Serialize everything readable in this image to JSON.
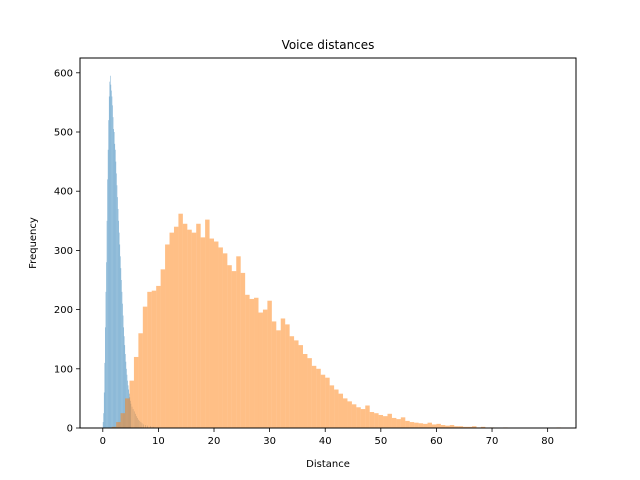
{
  "chart_data": {
    "type": "bar",
    "subtype": "overlapping-histogram",
    "title": "Voice distances",
    "xlabel": "Distance",
    "ylabel": "Frequency",
    "xlim": [
      -4.1,
      85.1
    ],
    "ylim": [
      0,
      625
    ],
    "xticks": [
      0,
      10,
      20,
      30,
      40,
      50,
      60,
      70,
      80
    ],
    "yticks": [
      0,
      100,
      200,
      300,
      400,
      500,
      600
    ],
    "grid": false,
    "legend": "none",
    "series": [
      {
        "color": "#1f77b4",
        "opacity": 0.5,
        "bin_width": 0.1,
        "bins": [
          [
            0.0,
            10
          ],
          [
            0.1,
            25
          ],
          [
            0.2,
            60
          ],
          [
            0.3,
            110
          ],
          [
            0.4,
            170
          ],
          [
            0.5,
            230
          ],
          [
            0.6,
            280
          ],
          [
            0.7,
            350
          ],
          [
            0.8,
            420
          ],
          [
            0.9,
            470
          ],
          [
            1.0,
            520
          ],
          [
            1.1,
            560
          ],
          [
            1.2,
            585
          ],
          [
            1.3,
            595
          ],
          [
            1.4,
            580
          ],
          [
            1.5,
            570
          ],
          [
            1.6,
            560
          ],
          [
            1.7,
            545
          ],
          [
            1.8,
            525
          ],
          [
            1.9,
            505
          ],
          [
            2.0,
            500
          ],
          [
            2.1,
            480
          ],
          [
            2.2,
            470
          ],
          [
            2.3,
            450
          ],
          [
            2.4,
            430
          ],
          [
            2.5,
            410
          ],
          [
            2.6,
            390
          ],
          [
            2.7,
            370
          ],
          [
            2.8,
            350
          ],
          [
            2.9,
            330
          ],
          [
            3.0,
            310
          ],
          [
            3.1,
            290
          ],
          [
            3.2,
            270
          ],
          [
            3.3,
            250
          ],
          [
            3.4,
            230
          ],
          [
            3.5,
            210
          ],
          [
            3.6,
            190
          ],
          [
            3.7,
            170
          ],
          [
            3.8,
            155
          ],
          [
            3.9,
            140
          ],
          [
            4.0,
            125
          ],
          [
            4.1,
            112
          ],
          [
            4.2,
            100
          ],
          [
            4.3,
            90
          ],
          [
            4.4,
            80
          ],
          [
            4.5,
            72
          ],
          [
            4.6,
            65
          ],
          [
            4.7,
            58
          ],
          [
            4.8,
            52
          ],
          [
            4.9,
            46
          ],
          [
            5.0,
            41
          ],
          [
            5.2,
            36
          ],
          [
            5.4,
            32
          ],
          [
            5.6,
            28
          ],
          [
            5.8,
            24
          ],
          [
            6.0,
            20
          ],
          [
            6.2,
            17
          ],
          [
            6.4,
            14
          ],
          [
            6.6,
            12
          ],
          [
            6.8,
            10
          ],
          [
            7.0,
            8
          ],
          [
            7.3,
            6
          ],
          [
            7.6,
            5
          ],
          [
            8.0,
            4
          ],
          [
            8.5,
            3
          ],
          [
            9.0,
            2
          ],
          [
            10.0,
            1
          ]
        ]
      },
      {
        "color": "#ff7f0e",
        "opacity": 0.5,
        "bin_width": 0.8,
        "bins": [
          [
            1.6,
            2
          ],
          [
            2.4,
            10
          ],
          [
            3.2,
            25
          ],
          [
            4.0,
            50
          ],
          [
            4.8,
            80
          ],
          [
            5.6,
            120
          ],
          [
            6.4,
            160
          ],
          [
            7.2,
            205
          ],
          [
            8.0,
            230
          ],
          [
            8.8,
            232
          ],
          [
            9.6,
            240
          ],
          [
            10.4,
            268
          ],
          [
            11.2,
            310
          ],
          [
            12.0,
            330
          ],
          [
            12.8,
            340
          ],
          [
            13.6,
            362
          ],
          [
            14.4,
            345
          ],
          [
            15.2,
            335
          ],
          [
            16.0,
            330
          ],
          [
            16.8,
            345
          ],
          [
            17.6,
            322
          ],
          [
            18.4,
            352
          ],
          [
            19.2,
            320
          ],
          [
            20.0,
            315
          ],
          [
            20.8,
            305
          ],
          [
            21.6,
            295
          ],
          [
            22.4,
            275
          ],
          [
            23.2,
            265
          ],
          [
            24.0,
            290
          ],
          [
            24.8,
            262
          ],
          [
            25.6,
            225
          ],
          [
            26.4,
            218
          ],
          [
            27.2,
            220
          ],
          [
            28.0,
            195
          ],
          [
            28.8,
            200
          ],
          [
            29.6,
            215
          ],
          [
            30.4,
            180
          ],
          [
            31.2,
            165
          ],
          [
            32.0,
            185
          ],
          [
            32.8,
            175
          ],
          [
            33.6,
            155
          ],
          [
            34.4,
            148
          ],
          [
            35.2,
            140
          ],
          [
            36.0,
            125
          ],
          [
            36.8,
            118
          ],
          [
            37.6,
            105
          ],
          [
            38.4,
            100
          ],
          [
            39.2,
            90
          ],
          [
            40.0,
            85
          ],
          [
            40.8,
            72
          ],
          [
            41.6,
            65
          ],
          [
            42.4,
            58
          ],
          [
            43.2,
            50
          ],
          [
            44.0,
            45
          ],
          [
            44.8,
            40
          ],
          [
            45.6,
            35
          ],
          [
            46.4,
            32
          ],
          [
            47.2,
            38
          ],
          [
            48.0,
            27
          ],
          [
            48.8,
            25
          ],
          [
            49.6,
            22
          ],
          [
            50.4,
            20
          ],
          [
            51.2,
            24
          ],
          [
            52.0,
            17
          ],
          [
            52.8,
            15
          ],
          [
            53.6,
            18
          ],
          [
            54.4,
            12
          ],
          [
            55.2,
            10
          ],
          [
            56.0,
            9
          ],
          [
            56.8,
            8
          ],
          [
            57.6,
            7
          ],
          [
            58.4,
            9
          ],
          [
            59.2,
            6
          ],
          [
            60.0,
            7
          ],
          [
            60.8,
            5
          ],
          [
            61.6,
            4
          ],
          [
            62.4,
            5
          ],
          [
            63.2,
            3
          ],
          [
            64.0,
            3
          ],
          [
            64.8,
            2
          ],
          [
            65.6,
            2
          ],
          [
            66.4,
            3
          ],
          [
            67.2,
            1
          ],
          [
            68.0,
            2
          ],
          [
            69.6,
            1
          ],
          [
            72.0,
            1
          ],
          [
            81.6,
            1
          ]
        ]
      }
    ]
  }
}
